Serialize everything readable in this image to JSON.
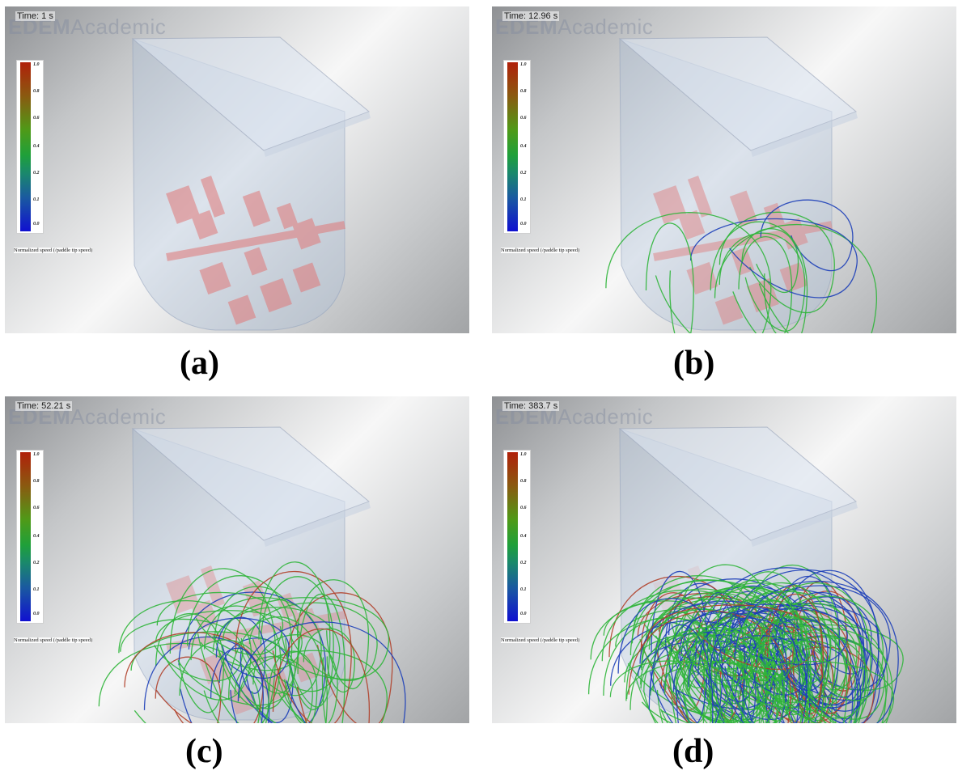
{
  "panels": [
    {
      "id": "a",
      "time": "Time: 1 s",
      "label": "(a)"
    },
    {
      "id": "b",
      "time": "Time: 12.96 s",
      "label": "(b)"
    },
    {
      "id": "c",
      "time": "Time: 52.21 s",
      "label": "(c)"
    },
    {
      "id": "d",
      "time": "Time: 383.7 s",
      "label": "(d)"
    }
  ],
  "watermark": {
    "bold": "EDEM",
    "rest": "Academic"
  },
  "legend": {
    "ticks": [
      "1.0",
      "0.8",
      "0.6",
      "0.4",
      "0.2",
      "0.1",
      "0.0"
    ],
    "caption": "Normalized speed (/paddle tip speed)"
  },
  "colors": {
    "paddle": "#e07878",
    "streak_green": "#2fb53a",
    "streak_blue": "#1d3fb8",
    "streak_red": "#b0402a"
  }
}
